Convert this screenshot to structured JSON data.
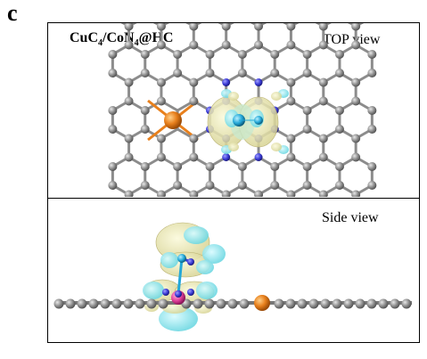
{
  "figure": {
    "panel_letter": "c",
    "system": {
      "base": "CuC",
      "sub1": "4",
      "mid": "/CoN",
      "sub2": "4",
      "tail": "@HC"
    },
    "top_view_label": "TOP view",
    "side_view_label": "Side view"
  },
  "colors": {
    "carbon": "#8c8c8c",
    "copper": "#e8801c",
    "nitrogen": "#3b3bd6",
    "cobalt": "#24a8d8",
    "charge_accumulation": "#f2f0b4",
    "charge_depletion": "#8fe6ec",
    "substrate_magenta": "#e0409a"
  }
}
